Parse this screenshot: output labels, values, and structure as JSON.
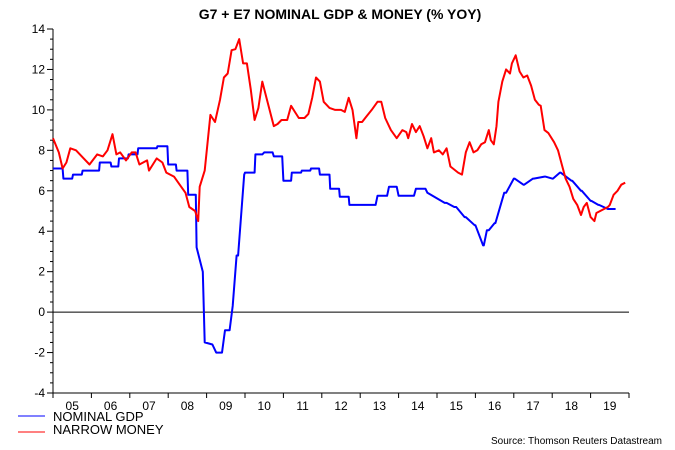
{
  "chart_data": {
    "type": "line",
    "title": "G7 + E7 NOMINAL GDP & MONEY (% YOY)",
    "xlabel": "",
    "ylabel": "",
    "xlim": [
      2005,
      2020
    ],
    "ylim": [
      -4,
      14
    ],
    "y_ticks": [
      "14",
      "12",
      "10",
      "8",
      "6",
      "4",
      "2",
      "0",
      "-2",
      "-4"
    ],
    "y_tick_values": [
      14,
      12,
      10,
      8,
      6,
      4,
      2,
      0,
      -2,
      -4
    ],
    "x_ticks": [
      "05",
      "06",
      "07",
      "08",
      "09",
      "10",
      "11",
      "12",
      "13",
      "14",
      "15",
      "16",
      "17",
      "18",
      "19"
    ],
    "reference_line": 0,
    "grid": false,
    "legend_placement": "bottom-left",
    "source": "Source: Thomson Reuters Datastream",
    "series": [
      {
        "name": "NOMINAL GDP",
        "color": "#0000ff",
        "x": [
          2005.0,
          2005.25,
          2005.27,
          2005.5,
          2005.52,
          2005.75,
          2005.77,
          2006.2,
          2006.22,
          2006.5,
          2006.52,
          2006.7,
          2006.72,
          2006.95,
          2006.97,
          2007.2,
          2007.22,
          2007.7,
          2007.72,
          2007.98,
          2008.0,
          2008.2,
          2008.22,
          2008.5,
          2008.52,
          2008.72,
          2008.74,
          2008.9,
          2008.95,
          2009.15,
          2009.25,
          2009.4,
          2009.48,
          2009.6,
          2009.68,
          2009.78,
          2009.82,
          2009.98,
          2010.0,
          2010.25,
          2010.27,
          2010.45,
          2010.5,
          2010.72,
          2010.75,
          2010.97,
          2011.0,
          2011.2,
          2011.22,
          2011.46,
          2011.48,
          2011.7,
          2011.72,
          2011.93,
          2011.95,
          2012.2,
          2012.22,
          2012.45,
          2012.47,
          2012.7,
          2012.72,
          2013.4,
          2013.45,
          2013.7,
          2013.75,
          2013.95,
          2014.0,
          2014.4,
          2014.45,
          2014.7,
          2014.75,
          2015.2,
          2015.25,
          2015.45,
          2015.5,
          2015.72,
          2015.75,
          2015.98,
          2016.0,
          2016.2,
          2016.22,
          2016.3,
          2016.35,
          2016.5,
          2016.52,
          2016.75,
          2016.8,
          2017.0,
          2017.02,
          2017.25,
          2017.27,
          2017.5,
          2017.52,
          2017.8,
          2017.82,
          2018.0,
          2018.02,
          2018.2,
          2018.22,
          2018.5,
          2018.52,
          2018.75,
          2018.77,
          2019.0,
          2019.02,
          2019.2,
          2019.22,
          2019.45,
          2019.47,
          2019.65
        ],
        "values": [
          7.1,
          7.1,
          6.6,
          6.6,
          6.8,
          6.8,
          7.0,
          7.0,
          7.4,
          7.4,
          7.2,
          7.2,
          7.6,
          7.6,
          7.8,
          7.8,
          8.1,
          8.1,
          8.2,
          8.2,
          7.3,
          7.3,
          7.0,
          7.0,
          5.8,
          5.8,
          3.2,
          2.0,
          -1.5,
          -1.6,
          -2.0,
          -2.0,
          -0.9,
          -0.9,
          0.3,
          2.8,
          2.8,
          6.8,
          6.9,
          6.9,
          7.8,
          7.8,
          7.9,
          7.9,
          7.7,
          7.7,
          6.5,
          6.5,
          6.9,
          6.9,
          7.0,
          7.0,
          7.1,
          7.1,
          6.8,
          6.8,
          6.1,
          6.1,
          5.7,
          5.7,
          5.3,
          5.3,
          5.75,
          5.75,
          6.2,
          6.2,
          5.75,
          5.75,
          6.1,
          6.1,
          5.9,
          5.4,
          5.4,
          5.2,
          5.2,
          4.7,
          4.7,
          4.3,
          4.3,
          3.3,
          3.3,
          4.05,
          4.05,
          4.4,
          4.4,
          5.9,
          5.9,
          6.6,
          6.6,
          6.3,
          6.3,
          6.6,
          6.6,
          6.7,
          6.7,
          6.6,
          6.6,
          6.9,
          6.9,
          6.5,
          6.5,
          6.0,
          6.0,
          5.5,
          5.5,
          5.3,
          5.3,
          5.1,
          5.1,
          5.1
        ]
      },
      {
        "name": "NARROW MONEY",
        "color": "#ff0000",
        "x": [
          2005.0,
          2005.15,
          2005.25,
          2005.35,
          2005.45,
          2005.6,
          2005.8,
          2005.95,
          2006.15,
          2006.3,
          2006.42,
          2006.55,
          2006.65,
          2006.75,
          2006.9,
          2007.05,
          2007.15,
          2007.25,
          2007.45,
          2007.5,
          2007.7,
          2007.85,
          2007.95,
          2008.15,
          2008.3,
          2008.45,
          2008.55,
          2008.7,
          2008.78,
          2008.82,
          2008.95,
          2009.1,
          2009.22,
          2009.35,
          2009.45,
          2009.55,
          2009.65,
          2009.75,
          2009.85,
          2009.95,
          2010.05,
          2010.15,
          2010.25,
          2010.35,
          2010.45,
          2010.6,
          2010.75,
          2010.85,
          2010.95,
          2011.1,
          2011.2,
          2011.3,
          2011.4,
          2011.55,
          2011.65,
          2011.75,
          2011.85,
          2011.95,
          2012.05,
          2012.2,
          2012.35,
          2012.5,
          2012.6,
          2012.7,
          2012.8,
          2012.9,
          2012.95,
          2013.05,
          2013.15,
          2013.3,
          2013.45,
          2013.55,
          2013.65,
          2013.8,
          2013.95,
          2014.1,
          2014.2,
          2014.25,
          2014.35,
          2014.45,
          2014.55,
          2014.65,
          2014.75,
          2014.85,
          2014.92,
          2015.05,
          2015.15,
          2015.25,
          2015.35,
          2015.55,
          2015.65,
          2015.75,
          2015.85,
          2015.95,
          2016.05,
          2016.15,
          2016.25,
          2016.35,
          2016.4,
          2016.48,
          2016.55,
          2016.6,
          2016.7,
          2016.8,
          2016.9,
          2016.95,
          2017.05,
          2017.15,
          2017.25,
          2017.35,
          2017.45,
          2017.55,
          2017.65,
          2017.7,
          2017.8,
          2017.9,
          2018.05,
          2018.15,
          2018.25,
          2018.35,
          2018.45,
          2018.55,
          2018.65,
          2018.75,
          2018.82,
          2018.9,
          2019.0,
          2019.1,
          2019.15,
          2019.25,
          2019.35,
          2019.45,
          2019.5,
          2019.6,
          2019.7,
          2019.8,
          2019.9
        ],
        "values": [
          8.6,
          7.9,
          7.1,
          7.4,
          8.1,
          8.0,
          7.6,
          7.3,
          7.8,
          7.7,
          8.0,
          8.8,
          7.8,
          7.9,
          7.5,
          7.9,
          7.9,
          7.3,
          7.5,
          7.0,
          7.6,
          7.4,
          6.9,
          6.7,
          6.3,
          5.9,
          5.2,
          5.0,
          4.5,
          6.2,
          7.0,
          9.75,
          9.4,
          10.5,
          11.6,
          11.8,
          12.95,
          13.0,
          13.5,
          12.3,
          12.3,
          11.0,
          9.5,
          10.1,
          11.4,
          10.3,
          9.2,
          9.3,
          9.5,
          9.5,
          10.2,
          9.9,
          9.6,
          9.6,
          9.8,
          10.6,
          11.6,
          11.4,
          10.4,
          10.1,
          10.0,
          10.0,
          9.9,
          10.6,
          10.0,
          8.6,
          9.4,
          9.4,
          9.65,
          10.0,
          10.4,
          10.4,
          9.6,
          9.0,
          8.6,
          9.0,
          8.9,
          8.6,
          9.3,
          8.9,
          9.2,
          8.7,
          8.1,
          8.6,
          7.9,
          8.0,
          7.8,
          8.1,
          7.2,
          6.9,
          6.8,
          7.9,
          8.4,
          7.9,
          8.0,
          8.3,
          8.4,
          9.0,
          8.5,
          8.3,
          9.2,
          10.4,
          11.4,
          12.0,
          11.8,
          12.3,
          12.7,
          11.9,
          11.6,
          11.7,
          11.2,
          10.5,
          10.25,
          10.2,
          9.0,
          8.85,
          8.4,
          8.0,
          7.3,
          6.6,
          6.2,
          5.6,
          5.3,
          4.8,
          5.2,
          5.4,
          4.7,
          4.5,
          4.9,
          5.0,
          5.1,
          5.2,
          5.3,
          5.8,
          6.0,
          6.3,
          6.4
        ]
      }
    ]
  }
}
